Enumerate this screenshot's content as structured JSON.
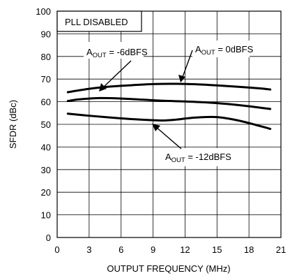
{
  "chart_data": {
    "type": "line",
    "title": "",
    "xlabel": "OUTPUT FREQUENCY (MHz)",
    "ylabel": "SFDR (dBc)",
    "xlim": [
      0,
      21
    ],
    "ylim": [
      0,
      100
    ],
    "xticks": [
      0,
      3,
      6,
      9,
      12,
      15,
      18,
      21
    ],
    "yticks": [
      0,
      10,
      20,
      30,
      40,
      50,
      60,
      70,
      80,
      90,
      100
    ],
    "grid": true,
    "note": "PLL DISABLED",
    "series": [
      {
        "name": "AOUT = 0dBFS",
        "label_main": "A",
        "label_sub": "OUT",
        "label_rest": " = 0dBFS",
        "x": [
          1,
          3,
          5,
          7,
          9,
          11,
          13,
          15,
          17,
          19,
          20
        ],
        "y": [
          64.2,
          65.7,
          66.7,
          67.3,
          67.8,
          67.9,
          67.7,
          67.2,
          66.6,
          65.9,
          65.4
        ]
      },
      {
        "name": "AOUT = -6dBFS",
        "label_main": "A",
        "label_sub": "OUT",
        "label_rest": " = -6dBFS",
        "x": [
          1,
          2,
          4,
          6,
          8,
          10,
          12,
          14,
          16,
          18,
          20
        ],
        "y": [
          60.3,
          61.0,
          61.6,
          61.4,
          60.9,
          60.4,
          60.1,
          59.7,
          59.0,
          58.0,
          56.8
        ]
      },
      {
        "name": "AOUT = -12dBFS",
        "label_main": "A",
        "label_sub": "OUT",
        "label_rest": " = -12dBFS",
        "x": [
          1,
          3,
          5,
          7,
          9,
          10,
          11,
          13,
          15,
          17,
          19,
          20
        ],
        "y": [
          54.7,
          53.8,
          53.0,
          52.3,
          51.8,
          51.7,
          52.0,
          53.0,
          53.2,
          51.7,
          49.3,
          48.0
        ]
      }
    ]
  }
}
